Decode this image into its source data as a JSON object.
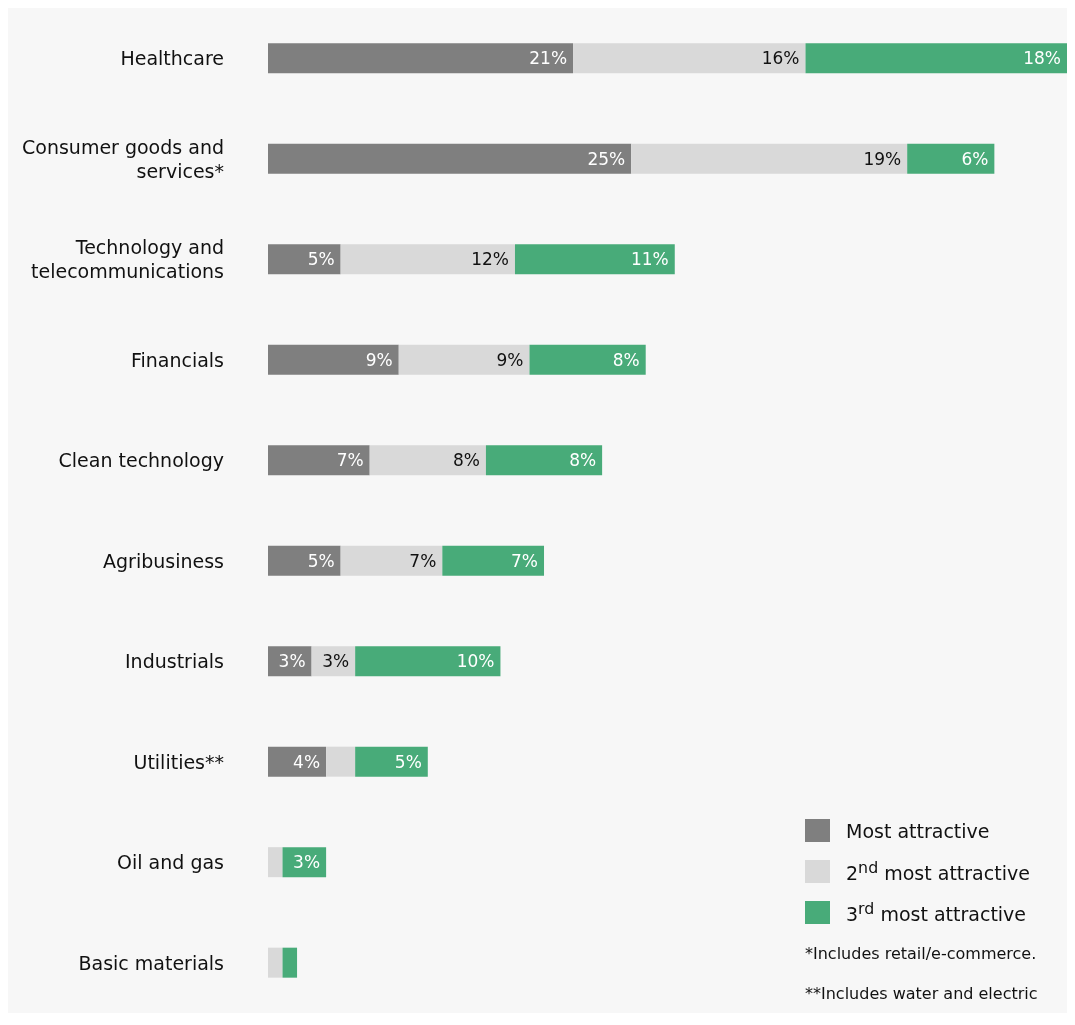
{
  "chart_data": {
    "type": "bar",
    "orientation": "horizontal",
    "stacked": true,
    "categories": [
      "Healthcare",
      "Consumer goods and services*",
      "Technology and telecommunications",
      "Financials",
      "Clean technology",
      "Agribusiness",
      "Industrials",
      "Utilities**",
      "Oil and gas",
      "Basic materials"
    ],
    "series": [
      {
        "name": "Most attractive",
        "color": "#7f7f7f",
        "values": [
          21,
          25,
          5,
          9,
          7,
          5,
          3,
          4,
          0,
          0
        ],
        "value_labels": [
          "21%",
          "25%",
          "5%",
          "9%",
          "7%",
          "5%",
          "3%",
          "4%",
          null,
          null
        ]
      },
      {
        "name": "2$^{nd}$ most attractive",
        "color": "#d9d9d9",
        "values": [
          16,
          19,
          12,
          9,
          8,
          7,
          3,
          2,
          1,
          1
        ],
        "value_labels": [
          "16%",
          "19%",
          "12%",
          "9%",
          "8%",
          "7%",
          "3%",
          null,
          null,
          null
        ]
      },
      {
        "name": "3$^{rd}$ most attractive",
        "color": "#48ab79",
        "values": [
          18,
          6,
          11,
          8,
          8,
          7,
          10,
          5,
          3,
          1
        ],
        "value_labels": [
          "18%",
          "6%",
          "11%",
          "8%",
          "8%",
          "7%",
          "10%",
          "5%",
          "3%",
          null
        ]
      }
    ],
    "legend": "bottom right",
    "annotations": [
      "*Includes retail/e-commerce.",
      "**Includes water and electric"
    ]
  }
}
